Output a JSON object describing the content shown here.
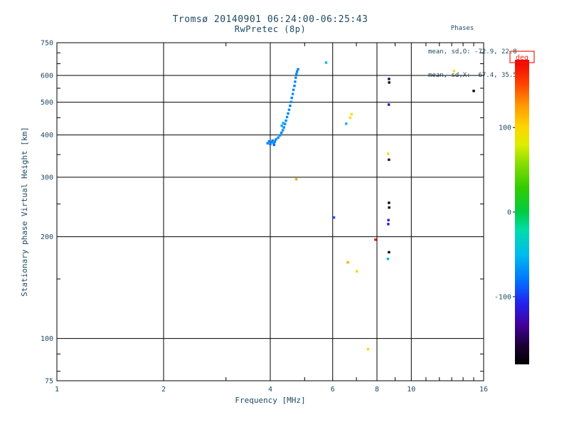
{
  "chart_data": {
    "type": "scatter",
    "title": "Tromsø 20140901 06:24:00-06:25:43",
    "subtitle": "RwPretec (8p)",
    "annotations": {
      "header": "Phases",
      "o_line": "mean, sd,O: -72.9, 22.8",
      "x_line": "mean, sd,X:  67.4, 35.5"
    },
    "x_axis": {
      "label": "Frequency [MHz]",
      "scale": "log",
      "range": [
        1,
        16
      ],
      "tick_values": [
        1,
        2,
        4,
        6,
        8,
        10,
        16
      ],
      "tick_labels": [
        "1",
        "2",
        "4",
        "6",
        "8",
        "10",
        "16"
      ],
      "grid_values": [
        2,
        4,
        6,
        8,
        10
      ],
      "minor_ticks": [
        3,
        5,
        7,
        9,
        11,
        12,
        13,
        14,
        15
      ]
    },
    "y_axis": {
      "label": "Stationary phase Virtual Height [km]",
      "scale": "log",
      "range": [
        75,
        750
      ],
      "tick_values": [
        75,
        100,
        200,
        300,
        400,
        500,
        600,
        750
      ],
      "tick_labels": [
        "75",
        "100",
        "200",
        "300",
        "400",
        "500",
        "600",
        "750"
      ],
      "grid_values": [
        100,
        200,
        300,
        400,
        500,
        600
      ],
      "minor_ticks": [
        80,
        90,
        150,
        250,
        350,
        450,
        550,
        650,
        700
      ]
    },
    "colorbar": {
      "label": "deg",
      "label_color": "#ee2211",
      "range": [
        -180,
        180
      ],
      "tick_values": [
        100,
        0,
        -100
      ],
      "tick_labels": [
        "100",
        "0",
        "-100"
      ],
      "gradient_stops": [
        [
          0.0,
          "#000000"
        ],
        [
          0.06,
          "#1a0033"
        ],
        [
          0.13,
          "#440099"
        ],
        [
          0.2,
          "#2222ee"
        ],
        [
          0.28,
          "#0077ff"
        ],
        [
          0.36,
          "#00bbee"
        ],
        [
          0.44,
          "#00ddaa"
        ],
        [
          0.5,
          "#00cc44"
        ],
        [
          0.58,
          "#33cc00"
        ],
        [
          0.66,
          "#88dd00"
        ],
        [
          0.72,
          "#ddee00"
        ],
        [
          0.78,
          "#ffd500"
        ],
        [
          0.85,
          "#ff9900"
        ],
        [
          0.92,
          "#ff4400"
        ],
        [
          1.0,
          "#ee0000"
        ]
      ]
    },
    "colors": {
      "text": "#1d4a63",
      "axis": "#000000"
    },
    "points": [
      [
        3.93,
        378,
        -72
      ],
      [
        3.97,
        383,
        -78
      ],
      [
        4.0,
        376,
        -82
      ],
      [
        4.03,
        381,
        -70
      ],
      [
        4.06,
        385,
        -76
      ],
      [
        4.09,
        378,
        -66
      ],
      [
        4.12,
        382,
        -74
      ],
      [
        4.15,
        388,
        -79
      ],
      [
        4.1,
        374,
        -84
      ],
      [
        4.21,
        393,
        -74
      ],
      [
        4.26,
        399,
        -70
      ],
      [
        4.3,
        406,
        -77
      ],
      [
        4.34,
        413,
        -71
      ],
      [
        4.37,
        421,
        -76
      ],
      [
        4.4,
        431,
        -69
      ],
      [
        4.43,
        441,
        -74
      ],
      [
        4.46,
        452,
        -67
      ],
      [
        4.49,
        463,
        -73
      ],
      [
        4.52,
        475,
        -71
      ],
      [
        4.55,
        488,
        -77
      ],
      [
        4.58,
        501,
        -70
      ],
      [
        4.6,
        515,
        -74
      ],
      [
        4.63,
        529,
        -67
      ],
      [
        4.65,
        544,
        -72
      ],
      [
        4.68,
        559,
        -76
      ],
      [
        4.7,
        575,
        -70
      ],
      [
        4.72,
        591,
        -73
      ],
      [
        4.74,
        606,
        -68
      ],
      [
        4.76,
        616,
        -72
      ],
      [
        4.79,
        626,
        -75
      ],
      [
        4.31,
        426,
        -58
      ],
      [
        4.35,
        434,
        -55
      ],
      [
        4.74,
        296,
        120
      ],
      [
        5.75,
        655,
        -48
      ],
      [
        6.05,
        228,
        -92
      ],
      [
        6.55,
        432,
        -52
      ],
      [
        6.72,
        450,
        95
      ],
      [
        6.78,
        461,
        92
      ],
      [
        6.62,
        168,
        118
      ],
      [
        7.02,
        158,
        95
      ],
      [
        7.55,
        93,
        98
      ],
      [
        7.92,
        196,
        168
      ],
      [
        8.65,
        586,
        -150
      ],
      [
        8.66,
        572,
        -158
      ],
      [
        8.64,
        492,
        -128
      ],
      [
        8.6,
        352,
        95
      ],
      [
        8.65,
        338,
        -155
      ],
      [
        8.65,
        252,
        -168
      ],
      [
        8.66,
        244,
        -162
      ],
      [
        8.62,
        224,
        -110
      ],
      [
        8.61,
        218,
        -115
      ],
      [
        8.65,
        180,
        -165
      ],
      [
        8.59,
        172,
        -52
      ],
      [
        13.2,
        618,
        95
      ],
      [
        15.0,
        540,
        -170
      ]
    ]
  }
}
